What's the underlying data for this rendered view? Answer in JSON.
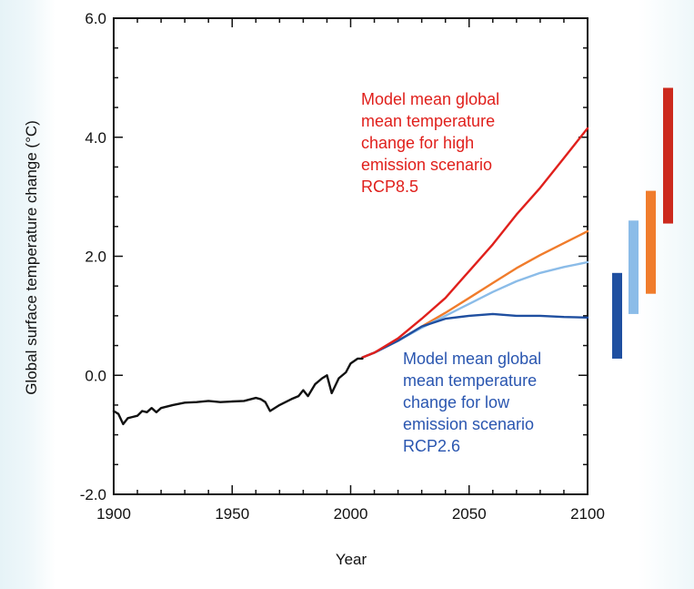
{
  "chart_data": {
    "type": "line",
    "xlabel": "Year",
    "ylabel": "Global surface temperature change (°C)",
    "xlim": [
      1900,
      2100
    ],
    "ylim": [
      -2.0,
      6.0
    ],
    "x_ticks": [
      1900,
      1950,
      2000,
      2050,
      2100
    ],
    "x_tick_labels": [
      "1900",
      "1950",
      "2000",
      "2050",
      "2100"
    ],
    "y_ticks": [
      -2.0,
      0.0,
      2.0,
      4.0,
      6.0
    ],
    "y_tick_labels": [
      "-2.0",
      "0.0",
      "2.0",
      "4.0",
      "6.0"
    ],
    "grid": false,
    "series": [
      {
        "color": "#111111",
        "x": [
          1900,
          1902,
          1904,
          1906,
          1908,
          1910,
          1912,
          1914,
          1916,
          1918,
          1920,
          1925,
          1930,
          1935,
          1940,
          1945,
          1950,
          1955,
          1960,
          1962,
          1964,
          1966,
          1970,
          1975,
          1978,
          1980,
          1982,
          1985,
          1988,
          1990,
          1992,
          1995,
          1998,
          2000,
          2003,
          2005
        ],
        "y": [
          -0.6,
          -0.65,
          -0.82,
          -0.72,
          -0.7,
          -0.68,
          -0.6,
          -0.62,
          -0.55,
          -0.62,
          -0.55,
          -0.5,
          -0.46,
          -0.45,
          -0.43,
          -0.45,
          -0.44,
          -0.43,
          -0.38,
          -0.4,
          -0.45,
          -0.6,
          -0.5,
          -0.4,
          -0.35,
          -0.25,
          -0.35,
          -0.15,
          -0.05,
          0.0,
          -0.3,
          -0.05,
          0.05,
          0.2,
          0.28,
          0.28
        ]
      },
      {
        "color": "#e0201c",
        "x": [
          2005,
          2010,
          2020,
          2030,
          2040,
          2050,
          2060,
          2070,
          2080,
          2090,
          2100
        ],
        "y": [
          0.3,
          0.38,
          0.62,
          0.95,
          1.3,
          1.75,
          2.2,
          2.7,
          3.15,
          3.65,
          4.15
        ]
      },
      {
        "color": "#f07c2c",
        "x": [
          2005,
          2010,
          2020,
          2030,
          2040,
          2050,
          2060,
          2070,
          2080,
          2090,
          2100
        ],
        "y": [
          0.3,
          0.38,
          0.58,
          0.82,
          1.05,
          1.3,
          1.55,
          1.8,
          2.02,
          2.22,
          2.42
        ]
      },
      {
        "color": "#8bbce8",
        "x": [
          2005,
          2010,
          2020,
          2030,
          2040,
          2050,
          2060,
          2070,
          2080,
          2090,
          2100
        ],
        "y": [
          0.3,
          0.38,
          0.58,
          0.8,
          1.0,
          1.2,
          1.4,
          1.58,
          1.72,
          1.82,
          1.9
        ]
      },
      {
        "color": "#1f4fa0",
        "x": [
          2005,
          2010,
          2020,
          2030,
          2040,
          2050,
          2060,
          2070,
          2080,
          2090,
          2100
        ],
        "y": [
          0.3,
          0.38,
          0.58,
          0.82,
          0.95,
          1.0,
          1.03,
          1.0,
          1.0,
          0.98,
          0.97
        ]
      }
    ],
    "range_bars": [
      {
        "color": "#1f4fa0",
        "low": 0.28,
        "high": 1.72
      },
      {
        "color": "#8bbce8",
        "low": 1.03,
        "high": 2.6
      },
      {
        "color": "#f07c2c",
        "low": 1.37,
        "high": 3.1
      },
      {
        "color": "#cc2a1e",
        "low": 2.55,
        "high": 4.83
      }
    ],
    "annotations": [
      {
        "color": "#e0201c",
        "lines": [
          "Model mean global",
          "mean temperature",
          "change for high",
          "emission scenario",
          "RCP8.5"
        ]
      },
      {
        "color": "#2a56b0",
        "lines": [
          "Model mean global",
          "mean temperature",
          "change for low",
          "emission scenario",
          "RCP2.6"
        ]
      }
    ]
  }
}
